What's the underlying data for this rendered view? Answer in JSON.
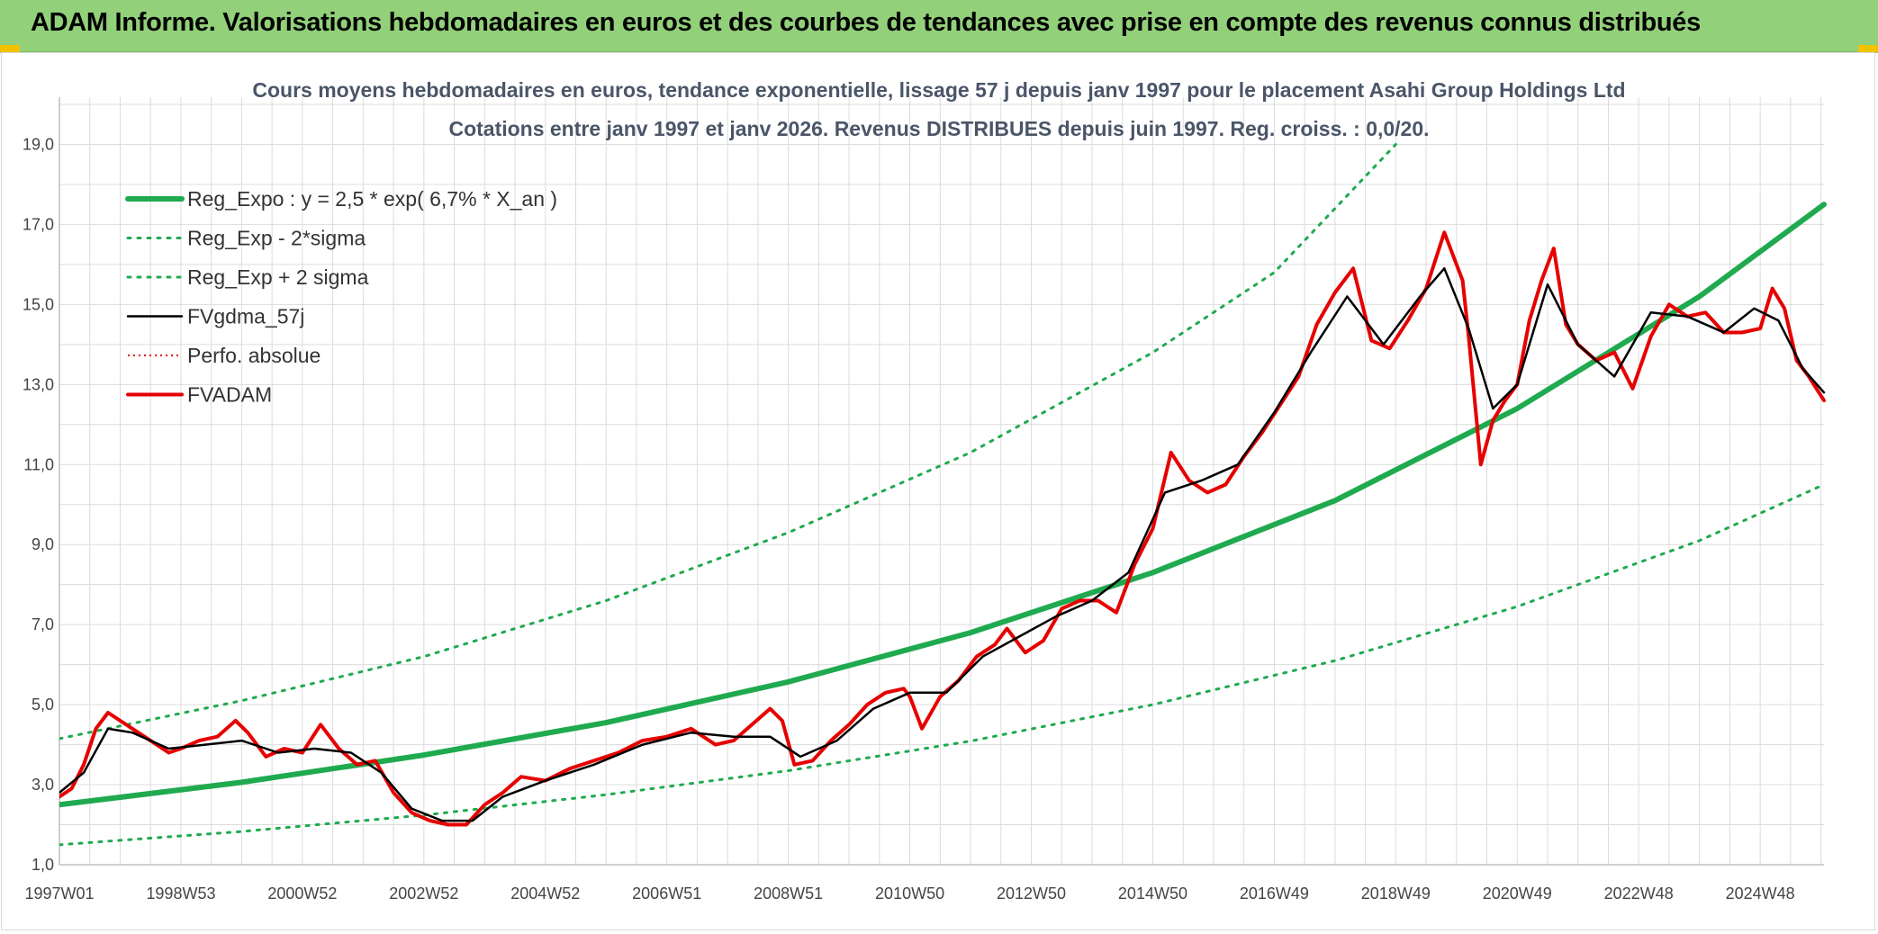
{
  "banner": {
    "title": "ADAM Informe. Valorisations hebdomadaires en euros et des courbes de tendances avec prise en compte des revenus connus distribués"
  },
  "colors": {
    "banner_bg": "#92d07a",
    "regression": "#1faa4f",
    "sigma": "#1faa4f",
    "smoothed": "#000000",
    "perf": "#e00000",
    "price": "#e60000"
  },
  "chart_data": {
    "type": "line",
    "title": "Cours moyens hebdomadaires en euros, tendance exponentielle, lissage 57 j depuis janv 1997 pour le placement Asahi Group Holdings Ltd",
    "subtitle": "Cotations entre janv 1997 et janv 2026. Revenus DISTRIBUES depuis juin 1997. Reg. croiss. : 0,0/20.",
    "x_unit": "year",
    "xlim": [
      1997.0,
      2026.05
    ],
    "ylim": [
      1.0,
      20.0
    ],
    "y_ticks": [
      "1,0",
      "3,0",
      "5,0",
      "7,0",
      "9,0",
      "11,0",
      "13,0",
      "15,0",
      "17,0",
      "19,0"
    ],
    "y_tick_values": [
      1,
      3,
      5,
      7,
      9,
      11,
      13,
      15,
      17,
      19
    ],
    "x_ticks": [
      "1997W01",
      "1998W53",
      "2000W52",
      "2002W52",
      "2004W52",
      "2006W51",
      "2008W51",
      "2010W50",
      "2012W50",
      "2014W50",
      "2016W49",
      "2018W49",
      "2020W49",
      "2022W48",
      "2024W48"
    ],
    "x_tick_values": [
      1997.0,
      1999.0,
      2001.0,
      2003.0,
      2005.0,
      2007.0,
      2009.0,
      2011.0,
      2013.0,
      2015.0,
      2017.0,
      2019.0,
      2021.0,
      2023.0,
      2025.0
    ],
    "grid": true,
    "legend_position": "top-left",
    "legend": [
      {
        "key": "regression",
        "label": "Reg_Expo : y = 2,5 * exp( 6,7% *  X_an )"
      },
      {
        "key": "lower",
        "label": "Reg_Exp - 2*sigma"
      },
      {
        "key": "upper",
        "label": "Reg_Exp + 2 sigma"
      },
      {
        "key": "smoothed",
        "label": "FVgdma_57j"
      },
      {
        "key": "perf",
        "label": "Perfo. absolue"
      },
      {
        "key": "price",
        "label": "FVADAM"
      }
    ],
    "series": [
      {
        "key": "regression",
        "name": "Reg_Expo : y = 2,5 * exp( 6,7% *  X_an )",
        "x": [
          1997.0,
          2000.0,
          2003.0,
          2006.0,
          2009.0,
          2012.0,
          2015.0,
          2018.0,
          2021.0,
          2024.0,
          2026.05
        ],
        "y": [
          2.5,
          3.06,
          3.74,
          4.55,
          5.57,
          6.8,
          8.3,
          10.1,
          12.4,
          15.2,
          17.5
        ]
      },
      {
        "key": "upper",
        "name": "Reg_Exp + 2 sigma",
        "x": [
          1997.0,
          2000.0,
          2003.0,
          2006.0,
          2009.0,
          2012.0,
          2015.0,
          2017.0,
          2018.0,
          2019.0
        ],
        "y": [
          4.15,
          5.1,
          6.2,
          7.6,
          9.3,
          11.3,
          13.8,
          15.8,
          17.4,
          19.0
        ]
      },
      {
        "key": "lower",
        "name": "Reg_Exp - 2*sigma",
        "x": [
          1997.0,
          2000.0,
          2003.0,
          2006.0,
          2009.0,
          2012.0,
          2015.0,
          2018.0,
          2021.0,
          2024.0,
          2026.05
        ],
        "y": [
          1.5,
          1.83,
          2.24,
          2.75,
          3.35,
          4.09,
          5.0,
          6.1,
          7.45,
          9.1,
          10.5
        ]
      },
      {
        "key": "price",
        "name": "FVADAM",
        "x": [
          1997.0,
          1997.2,
          1997.4,
          1997.6,
          1997.8,
          1998.0,
          1998.2,
          1998.5,
          1998.8,
          1999.0,
          1999.3,
          1999.6,
          1999.9,
          2000.1,
          2000.4,
          2000.7,
          2001.0,
          2001.3,
          2001.6,
          2001.9,
          2002.2,
          2002.5,
          2002.8,
          2003.1,
          2003.4,
          2003.7,
          2004.0,
          2004.3,
          2004.6,
          2005.0,
          2005.4,
          2005.8,
          2006.2,
          2006.6,
          2007.0,
          2007.4,
          2007.8,
          2008.1,
          2008.4,
          2008.7,
          2008.9,
          2009.1,
          2009.4,
          2009.7,
          2010.0,
          2010.3,
          2010.6,
          2010.9,
          2011.0,
          2011.2,
          2011.5,
          2011.8,
          2012.1,
          2012.4,
          2012.6,
          2012.9,
          2013.2,
          2013.5,
          2013.8,
          2014.1,
          2014.4,
          2014.7,
          2015.0,
          2015.3,
          2015.6,
          2015.9,
          2016.2,
          2016.5,
          2016.8,
          2017.1,
          2017.4,
          2017.7,
          2018.0,
          2018.3,
          2018.6,
          2018.9,
          2019.2,
          2019.5,
          2019.8,
          2020.1,
          2020.2,
          2020.4,
          2020.6,
          2020.8,
          2021.0,
          2021.2,
          2021.4,
          2021.6,
          2021.8,
          2022.0,
          2022.3,
          2022.6,
          2022.9,
          2023.2,
          2023.5,
          2023.8,
          2024.1,
          2024.4,
          2024.7,
          2025.0,
          2025.2,
          2025.4,
          2025.6,
          2025.8,
          2026.05
        ],
        "y": [
          2.7,
          2.9,
          3.5,
          4.4,
          4.8,
          4.6,
          4.4,
          4.1,
          3.8,
          3.9,
          4.1,
          4.2,
          4.6,
          4.3,
          3.7,
          3.9,
          3.8,
          4.5,
          3.9,
          3.5,
          3.6,
          2.8,
          2.3,
          2.1,
          2.0,
          2.0,
          2.5,
          2.8,
          3.2,
          3.1,
          3.4,
          3.6,
          3.8,
          4.1,
          4.2,
          4.4,
          4.0,
          4.1,
          4.5,
          4.9,
          4.6,
          3.5,
          3.6,
          4.1,
          4.5,
          5.0,
          5.3,
          5.4,
          5.2,
          4.4,
          5.2,
          5.6,
          6.2,
          6.5,
          6.9,
          6.3,
          6.6,
          7.4,
          7.6,
          7.6,
          7.3,
          8.5,
          9.4,
          11.3,
          10.6,
          10.3,
          10.5,
          11.2,
          11.8,
          12.5,
          13.2,
          14.5,
          15.3,
          15.9,
          14.1,
          13.9,
          14.6,
          15.4,
          16.8,
          15.6,
          14.2,
          11.0,
          12.1,
          12.6,
          13.0,
          14.6,
          15.6,
          16.4,
          14.5,
          14.0,
          13.6,
          13.8,
          12.9,
          14.2,
          15.0,
          14.7,
          14.8,
          14.3,
          14.3,
          14.4,
          15.4,
          14.9,
          13.6,
          13.2,
          12.6
        ]
      },
      {
        "key": "smoothed",
        "name": "FVgdma_57j",
        "x": [
          1997.0,
          1997.4,
          1997.8,
          1998.2,
          1998.8,
          1999.4,
          2000.0,
          2000.6,
          2001.2,
          2001.8,
          2002.3,
          2002.8,
          2003.3,
          2003.8,
          2004.3,
          2005.0,
          2005.8,
          2006.6,
          2007.4,
          2008.1,
          2008.7,
          2009.2,
          2009.8,
          2010.4,
          2011.0,
          2011.6,
          2012.2,
          2012.8,
          2013.4,
          2014.0,
          2014.6,
          2015.2,
          2015.8,
          2016.4,
          2017.0,
          2017.6,
          2018.2,
          2018.8,
          2019.4,
          2019.8,
          2020.2,
          2020.6,
          2021.0,
          2021.5,
          2022.0,
          2022.6,
          2023.2,
          2023.8,
          2024.4,
          2024.9,
          2025.3,
          2025.7,
          2026.05
        ],
        "y": [
          2.8,
          3.3,
          4.4,
          4.3,
          3.9,
          4.0,
          4.1,
          3.8,
          3.9,
          3.8,
          3.3,
          2.4,
          2.1,
          2.1,
          2.7,
          3.1,
          3.5,
          4.0,
          4.3,
          4.2,
          4.2,
          3.7,
          4.1,
          4.9,
          5.3,
          5.3,
          6.2,
          6.7,
          7.2,
          7.6,
          8.3,
          10.3,
          10.6,
          11.0,
          12.3,
          13.8,
          15.2,
          14.0,
          15.2,
          15.9,
          14.4,
          12.4,
          13.0,
          15.5,
          14.0,
          13.2,
          14.8,
          14.7,
          14.3,
          14.9,
          14.6,
          13.4,
          12.8
        ]
      }
    ]
  }
}
